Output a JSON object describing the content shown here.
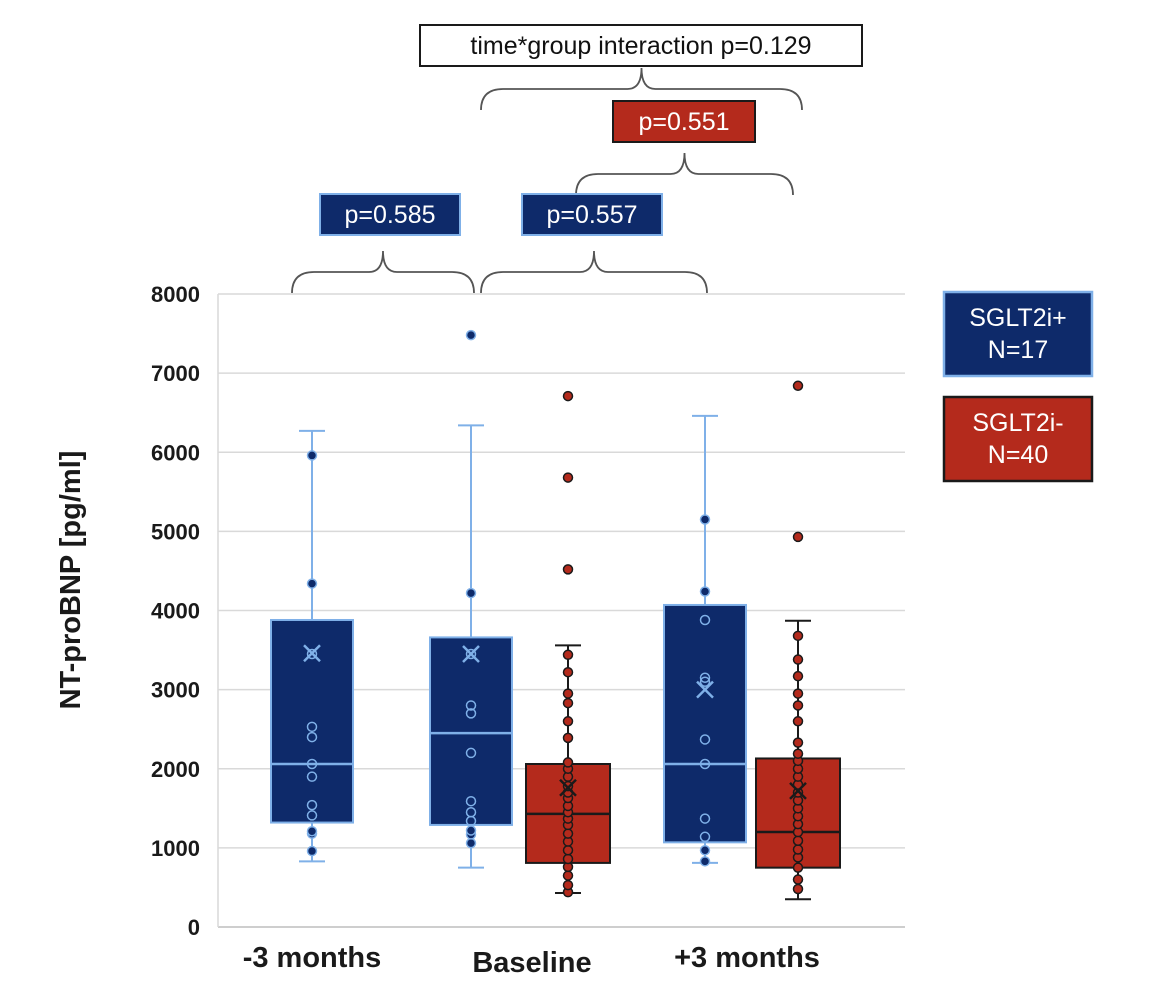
{
  "chart_data": {
    "type": "box",
    "ylabel": "NT-proBNP [pg/ml]",
    "xlabel": "",
    "ylim": [
      0,
      8000
    ],
    "yticks": [
      0,
      1000,
      2000,
      3000,
      4000,
      5000,
      6000,
      7000,
      8000
    ],
    "grid": true,
    "categories": [
      "-3 months",
      "Baseline",
      "+3 months"
    ],
    "colors": {
      "SGLT2i+": {
        "fill": "#0e2a6a",
        "line": "#7fb0e8"
      },
      "SGLT2i-": {
        "fill": "#b42a1c",
        "line": "#1a1a1a"
      }
    },
    "series": [
      {
        "name": "SGLT2i+",
        "n_label": "N=17",
        "boxes": [
          {
            "category": "-3 months",
            "whisker_low": 830,
            "q1": 1320,
            "median": 2060,
            "q3": 3880,
            "whisker_high": 6270,
            "mean": 3460,
            "points": [
              960,
              1180,
              1210,
              1410,
              1540,
              1900,
              2060,
              2400,
              2530,
              3450,
              4340,
              5960
            ],
            "outliers": []
          },
          {
            "category": "Baseline",
            "whisker_low": 750,
            "q1": 1290,
            "median": 2450,
            "q3": 3660,
            "whisker_high": 6340,
            "mean": 3450,
            "points": [
              1060,
              1170,
              1220,
              1340,
              1450,
              1590,
              2200,
              2700,
              2800,
              3450,
              4220
            ],
            "outliers": [
              7480
            ]
          },
          {
            "category": "+3 months",
            "whisker_low": 810,
            "q1": 1070,
            "median": 2060,
            "q3": 4070,
            "whisker_high": 6460,
            "mean": 3000,
            "points": [
              830,
              970,
              1140,
              1370,
              2060,
              2370,
              3100,
              3150,
              3880,
              4240,
              5150
            ],
            "outliers": []
          }
        ]
      },
      {
        "name": "SGLT2i-",
        "n_label": "N=40",
        "boxes": [
          {
            "category": "Baseline",
            "whisker_low": 430,
            "q1": 810,
            "median": 1430,
            "q3": 2060,
            "whisker_high": 3560,
            "mean": 1760,
            "points": [
              440,
              530,
              650,
              760,
              860,
              970,
              1080,
              1180,
              1290,
              1370,
              1450,
              1530,
              1630,
              1700,
              1780,
              1900,
              2000,
              2080,
              2390,
              2600,
              2830,
              2950,
              3220,
              3440
            ],
            "outliers": [
              4520,
              5680,
              6710
            ]
          },
          {
            "category": "+3 months",
            "whisker_low": 350,
            "q1": 750,
            "median": 1200,
            "q3": 2130,
            "whisker_high": 3870,
            "mean": 1720,
            "points": [
              480,
              600,
              750,
              880,
              980,
              1090,
              1200,
              1300,
              1400,
              1500,
              1600,
              1700,
              1800,
              1900,
              2000,
              2100,
              2190,
              2330,
              2600,
              2800,
              2950,
              3170,
              3380,
              3680
            ],
            "outliers": [
              4930,
              6840
            ]
          }
        ]
      }
    ],
    "legend": {
      "placement": "right",
      "items": [
        {
          "line1": "SGLT2i+",
          "line2": "N=17",
          "color": "#0e2a6a",
          "border": "#7fb0e8"
        },
        {
          "line1": "SGLT2i-",
          "line2": "N=40",
          "color": "#b42a1c",
          "border": "#1a1a1a"
        }
      ]
    },
    "annotations": {
      "interaction": "time*group interaction p=0.129",
      "p_values": [
        {
          "text": "p=0.585",
          "color": "#0e2a6a",
          "border": "#7fb0e8"
        },
        {
          "text": "p=0.557",
          "color": "#0e2a6a",
          "border": "#7fb0e8"
        },
        {
          "text": "p=0.551",
          "color": "#b42a1c",
          "border": "#1a1a1a"
        }
      ]
    }
  }
}
